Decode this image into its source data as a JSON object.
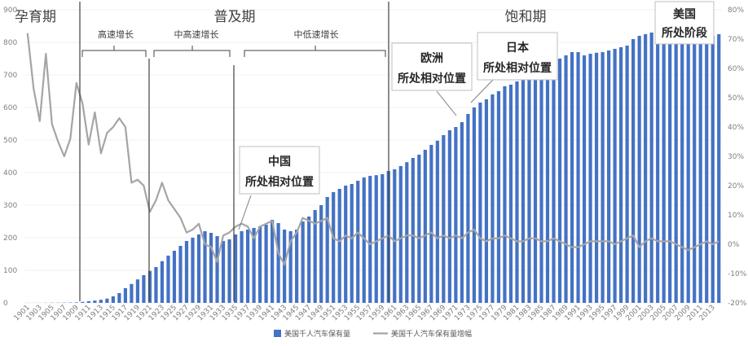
{
  "chart_data": {
    "type": "bar+line",
    "title": "",
    "xlabel": "",
    "ylabel": "",
    "ylim": [
      0,
      900
    ],
    "y2lim": [
      -0.2,
      0.8
    ],
    "y_ticks": [
      "0",
      "100",
      "200",
      "300",
      "400",
      "500",
      "600",
      "700",
      "800",
      "900"
    ],
    "y2_ticks": [
      "-20%",
      "-10%",
      "0%",
      "10%",
      "20%",
      "30%",
      "40%",
      "50%",
      "60%",
      "70%",
      "80%"
    ],
    "x_tick_labels": [
      "1901",
      "1903",
      "1905",
      "1907",
      "1909",
      "1911",
      "1913",
      "1915",
      "1917",
      "1919",
      "1921",
      "1923",
      "1925",
      "1927",
      "1929",
      "1931",
      "1933",
      "1935",
      "1937",
      "1939",
      "1941",
      "1943",
      "1945",
      "1947",
      "1949",
      "1951",
      "1953",
      "1955",
      "1957",
      "1959",
      "1961",
      "1963",
      "1965",
      "1967",
      "1969",
      "1971",
      "1973",
      "1975",
      "1977",
      "1979",
      "1981",
      "1983",
      "1985",
      "1987",
      "1989",
      "1991",
      "1993",
      "1995",
      "1997",
      "1999",
      "2001",
      "2003",
      "2005",
      "2007",
      "2009",
      "2011",
      "2013"
    ],
    "years": [
      1901,
      1902,
      1903,
      1904,
      1905,
      1906,
      1907,
      1908,
      1909,
      1910,
      1911,
      1912,
      1913,
      1914,
      1915,
      1916,
      1917,
      1918,
      1919,
      1920,
      1921,
      1922,
      1923,
      1924,
      1925,
      1926,
      1927,
      1928,
      1929,
      1930,
      1931,
      1932,
      1933,
      1934,
      1935,
      1936,
      1937,
      1938,
      1939,
      1940,
      1941,
      1942,
      1943,
      1944,
      1945,
      1946,
      1947,
      1948,
      1949,
      1950,
      1951,
      1952,
      1953,
      1954,
      1955,
      1956,
      1957,
      1958,
      1959,
      1960,
      1961,
      1962,
      1963,
      1964,
      1965,
      1966,
      1967,
      1968,
      1969,
      1970,
      1971,
      1972,
      1973,
      1974,
      1975,
      1976,
      1977,
      1978,
      1979,
      1980,
      1981,
      1982,
      1983,
      1984,
      1985,
      1986,
      1987,
      1988,
      1989,
      1990,
      1991,
      1992,
      1993,
      1994,
      1995,
      1996,
      1997,
      1998,
      1999,
      2000,
      2001,
      2002,
      2003,
      2004,
      2005,
      2006,
      2007,
      2008,
      2009,
      2010,
      2011,
      2012,
      2013,
      2014
    ],
    "series": [
      {
        "name": "美国千人汽车保有量",
        "type": "bar",
        "axis": "left",
        "color": "#4472c4",
        "values": [
          0.1,
          0.1,
          0.2,
          0.3,
          0.5,
          0.6,
          0.8,
          1,
          1.5,
          3,
          5,
          7,
          9.5,
          13,
          20,
          30,
          45,
          58,
          72,
          85,
          98,
          110,
          128,
          145,
          160,
          175,
          190,
          200,
          210,
          220,
          215,
          205,
          190,
          195,
          210,
          220,
          225,
          230,
          235,
          240,
          255,
          245,
          225,
          220,
          225,
          250,
          265,
          285,
          300,
          325,
          340,
          350,
          360,
          365,
          375,
          385,
          390,
          392,
          395,
          405,
          410,
          420,
          432,
          445,
          455,
          470,
          485,
          498,
          515,
          530,
          540,
          555,
          580,
          600,
          615,
          625,
          640,
          650,
          665,
          670,
          680,
          690,
          700,
          710,
          720,
          730,
          740,
          750,
          760,
          770,
          770,
          760,
          765,
          768,
          770,
          775,
          780,
          785,
          790,
          810,
          820,
          825,
          830,
          828,
          830,
          828,
          825,
          820,
          810,
          808,
          815,
          818,
          820,
          825
        ]
      },
      {
        "name": "美国千人汽车保有量增幅",
        "type": "line",
        "axis": "right",
        "color": "#a5a5a5",
        "values": [
          0.72,
          0.53,
          0.42,
          0.65,
          0.41,
          0.35,
          0.3,
          0.36,
          0.55,
          0.48,
          0.34,
          0.45,
          0.31,
          0.38,
          0.4,
          0.43,
          0.4,
          0.21,
          0.22,
          0.2,
          0.11,
          0.15,
          0.21,
          0.15,
          0.12,
          0.09,
          0.04,
          0.05,
          0.07,
          0.0,
          -0.01,
          -0.06,
          0.03,
          0.04,
          0.06,
          0.07,
          0.06,
          0.02,
          0.06,
          0.07,
          0.08,
          -0.03,
          -0.07,
          0.01,
          0.04,
          0.09,
          0.08,
          0.07,
          0.08,
          0.09,
          0.02,
          0.01,
          0.03,
          0.02,
          0.04,
          0.02,
          0.0,
          0.01,
          0.02,
          0.03,
          0.01,
          0.02,
          0.03,
          0.03,
          0.02,
          0.03,
          0.04,
          0.02,
          0.03,
          0.02,
          0.03,
          0.02,
          0.04,
          0.05,
          0.02,
          0.01,
          0.02,
          0.02,
          0.03,
          0.02,
          0.01,
          0.01,
          0.02,
          0.02,
          0.01,
          0.01,
          0.02,
          0.01,
          0.0,
          -0.01,
          -0.01,
          0.0,
          0.01,
          0.01,
          0.01,
          0.01,
          0.0,
          0.01,
          0.02,
          0.03,
          -0.01,
          0.01,
          0.02,
          0.01,
          0.01,
          0.01,
          0.0,
          -0.01,
          -0.02,
          -0.01,
          0.0,
          0.01,
          0.0,
          0.01
        ]
      }
    ],
    "legend_position": "bottom",
    "phases": [
      {
        "label": "孕育期"
      },
      {
        "label": "普及期"
      },
      {
        "label": "饱和期"
      }
    ],
    "sub_phases": [
      {
        "label": "高速增长"
      },
      {
        "label": "中高速增长"
      },
      {
        "label": "中低速增长"
      }
    ],
    "callouts": [
      {
        "line1": "中国",
        "line2": "所处相对位置"
      },
      {
        "line1": "欧洲",
        "line2": "所处相对位置"
      },
      {
        "line1": "日本",
        "line2": "所处相对位置"
      },
      {
        "line1": "美国",
        "line2": "所处阶段"
      }
    ]
  }
}
